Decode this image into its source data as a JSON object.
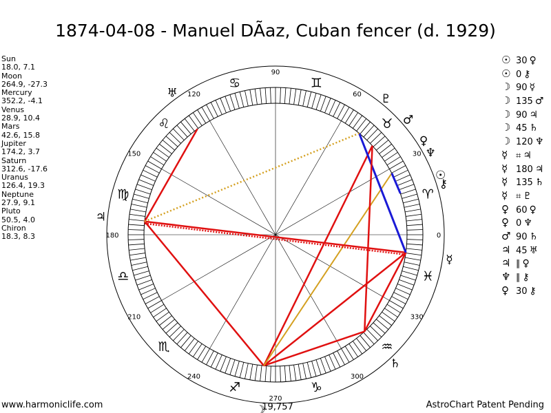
{
  "title": "1874-04-08 - Manuel DÃaz, Cuban fencer (d. 1929)",
  "planets": [
    {
      "name": "Sun",
      "coords": "18.0, 7.1",
      "glyph": "☉"
    },
    {
      "name": "Moon",
      "coords": "264.9, -27.3",
      "glyph": "☽"
    },
    {
      "name": "Mercury",
      "coords": "352.2, -4.1",
      "glyph": "☿"
    },
    {
      "name": "Venus",
      "coords": "28.9, 10.4",
      "glyph": "♀"
    },
    {
      "name": "Mars",
      "coords": "42.6, 15.8",
      "glyph": "♂"
    },
    {
      "name": "Jupiter",
      "coords": "174.2, 3.7",
      "glyph": "♃"
    },
    {
      "name": "Saturn",
      "coords": "312.6, -17.6",
      "glyph": "♄"
    },
    {
      "name": "Uranus",
      "coords": "126.4, 19.3",
      "glyph": "♅"
    },
    {
      "name": "Neptune",
      "coords": "27.9, 9.1",
      "glyph": "♆"
    },
    {
      "name": "Pluto",
      "coords": "50.5, 4.0",
      "glyph": "♇"
    },
    {
      "name": "Chiron",
      "coords": "18.3, 8.3",
      "glyph": "⚷"
    }
  ],
  "aspects": [
    {
      "g1": "☉",
      "sym": "30",
      "g2": "♀"
    },
    {
      "g1": "☉",
      "sym": "0",
      "g2": "⚷"
    },
    {
      "g1": "☽",
      "sym": "90",
      "g2": "☿"
    },
    {
      "g1": "☽",
      "sym": "135",
      "g2": "♂"
    },
    {
      "g1": "☽",
      "sym": "90",
      "g2": "♃"
    },
    {
      "g1": "☽",
      "sym": "45",
      "g2": "♄"
    },
    {
      "g1": "☽",
      "sym": "120",
      "g2": "♆"
    },
    {
      "g1": "☿",
      "sym": "⌗",
      "g2": "♃"
    },
    {
      "g1": "☿",
      "sym": "180",
      "g2": "♃"
    },
    {
      "g1": "☿",
      "sym": "135",
      "g2": "♄"
    },
    {
      "g1": "☿",
      "sym": "⌗",
      "g2": "♇"
    },
    {
      "g1": "♀",
      "sym": "60",
      "g2": "♀"
    },
    {
      "g1": "♀",
      "sym": "0",
      "g2": "♆"
    },
    {
      "g1": "♂",
      "sym": "90",
      "g2": "♄"
    },
    {
      "g1": "♃",
      "sym": "45",
      "g2": "♅"
    },
    {
      "g1": "♃",
      "sym": "∥",
      "g2": "♀"
    },
    {
      "g1": "♆",
      "sym": "∥",
      "g2": "⚷"
    },
    {
      "g1": "♀",
      "sym": "30",
      "g2": "⚷"
    }
  ],
  "wheel": {
    "degree_labels": [
      "0",
      "30",
      "60",
      "90",
      "120",
      "150",
      "180",
      "210",
      "240",
      "270",
      "300",
      "330"
    ],
    "center_label": "19,757",
    "signs": [
      {
        "name": "aries",
        "glyph": "♈",
        "lon": 15
      },
      {
        "name": "taurus",
        "glyph": "♉",
        "lon": 45
      },
      {
        "name": "gemini",
        "glyph": "♊",
        "lon": 75
      },
      {
        "name": "cancer",
        "glyph": "♋",
        "lon": 105
      },
      {
        "name": "leo",
        "glyph": "♌",
        "lon": 135
      },
      {
        "name": "virgo",
        "glyph": "♍",
        "lon": 165
      },
      {
        "name": "libra",
        "glyph": "♎",
        "lon": 195
      },
      {
        "name": "scorpio",
        "glyph": "♏",
        "lon": 225
      },
      {
        "name": "sagittarius",
        "glyph": "♐",
        "lon": 255
      },
      {
        "name": "capricorn",
        "glyph": "♑",
        "lon": 285
      },
      {
        "name": "aquarius",
        "glyph": "♒",
        "lon": 315
      },
      {
        "name": "pisces",
        "glyph": "♓",
        "lon": 345
      }
    ],
    "node_glyph": "☊",
    "colors": {
      "red": "#e01010",
      "blue": "#1a1ad6",
      "gold": "#d4a020"
    }
  },
  "footer": {
    "left": "www.harmoniclife.com",
    "right": "AstroChart Patent Pending"
  }
}
